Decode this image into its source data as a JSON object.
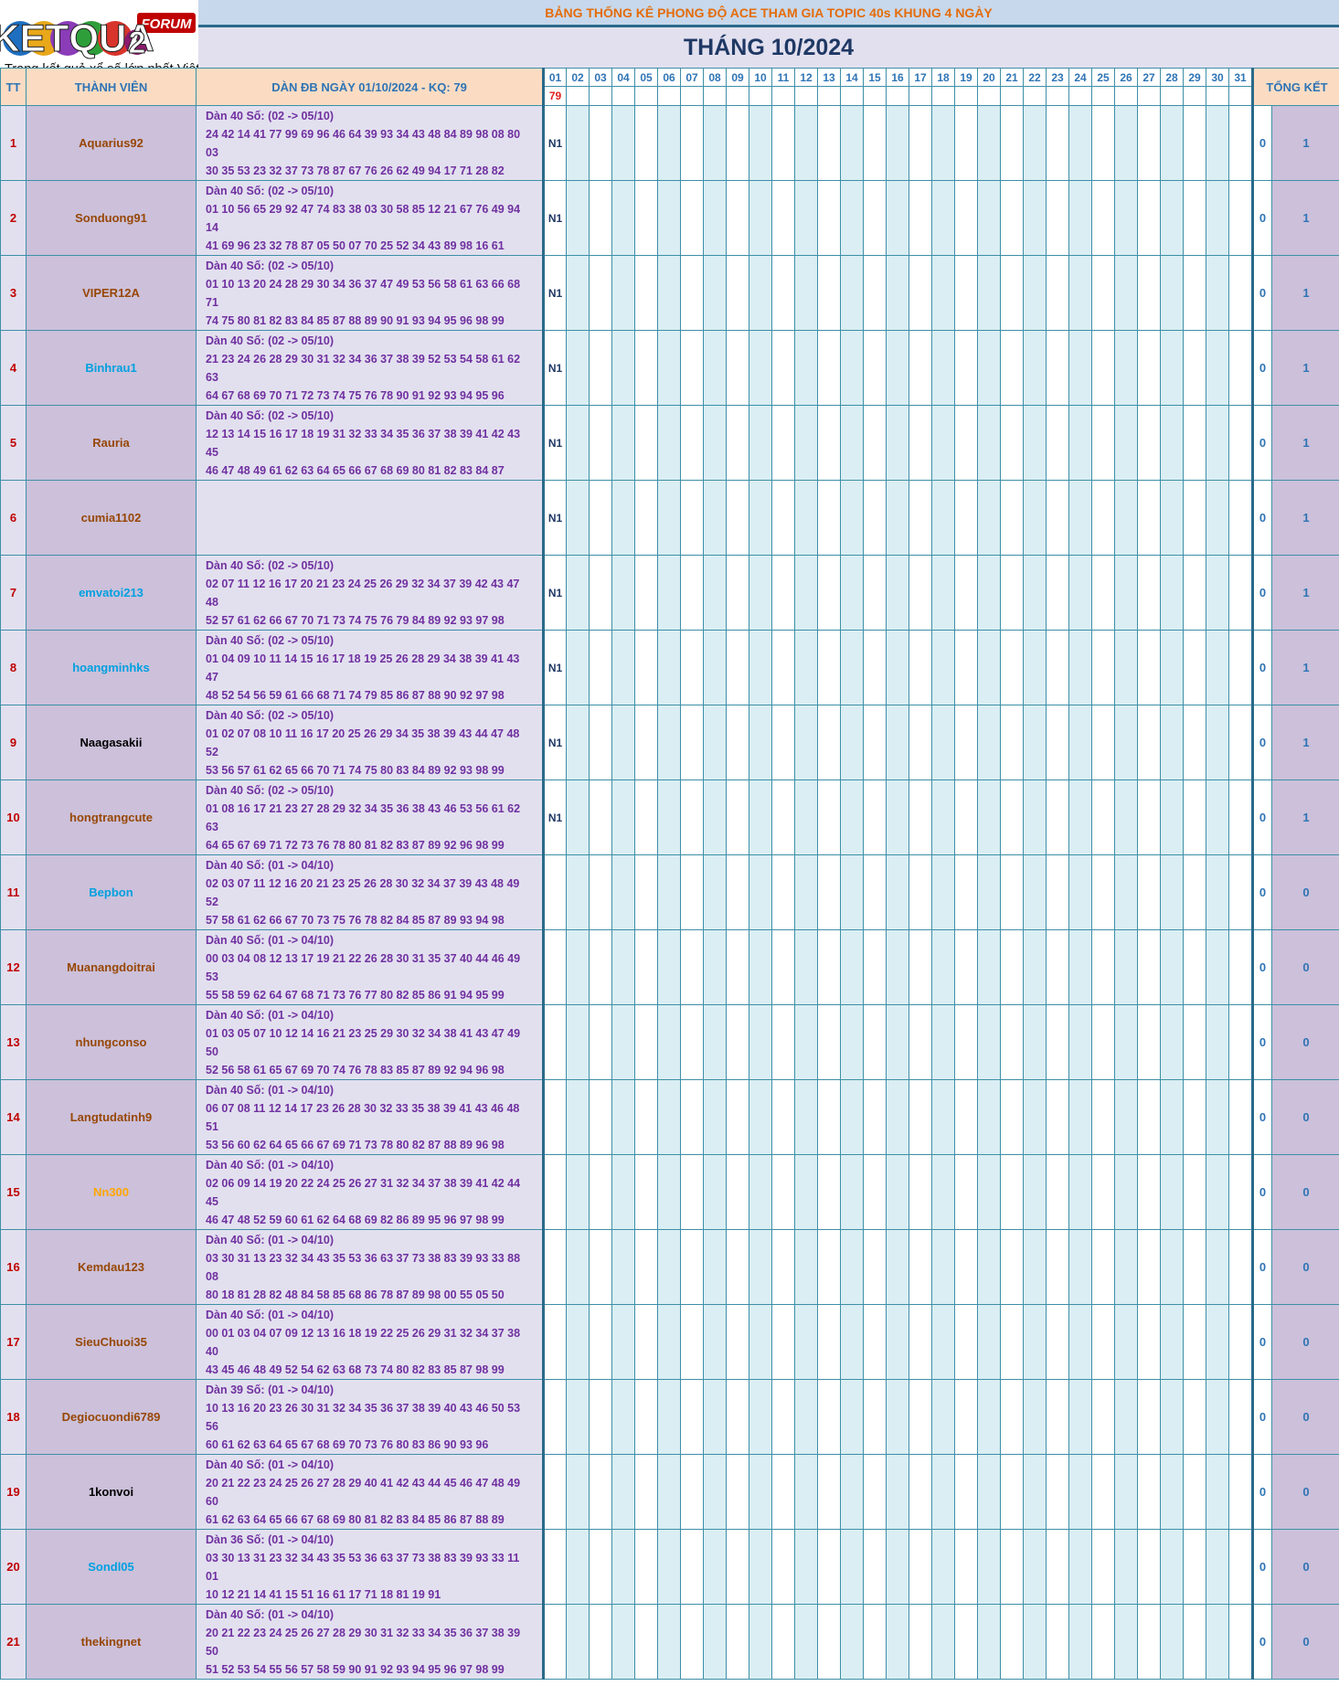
{
  "logo": {
    "brand": "KETQUA",
    "brand_2": "2",
    "forum": "FORUM",
    "tagline": "Trang kết quả xổ số lớn nhất Việt Nam"
  },
  "header": {
    "banner": "BẢNG THỐNG KÊ PHONG ĐỘ ACE THAM GIA TOPIC 40s KHUNG 4 NGÀY",
    "month_title": "THÁNG 10/2024"
  },
  "columns": {
    "tt": "TT",
    "member": "THÀNH VIÊN",
    "dan": "DÀN ĐB NGÀY 01/10/2024 - KQ: 79",
    "days": [
      "01",
      "02",
      "03",
      "04",
      "05",
      "06",
      "07",
      "08",
      "09",
      "10",
      "11",
      "12",
      "13",
      "14",
      "15",
      "16",
      "17",
      "18",
      "19",
      "20",
      "21",
      "22",
      "23",
      "24",
      "25",
      "26",
      "27",
      "28",
      "29",
      "30",
      "31"
    ],
    "results": [
      "79",
      "",
      "",
      "",
      "",
      "",
      "",
      "",
      "",
      "",
      "",
      "",
      "",
      "",
      "",
      "",
      "",
      "",
      "",
      "",
      "",
      "",
      "",
      "",
      "",
      "",
      "",
      "",
      "",
      "",
      ""
    ],
    "summary": "TỔNG KẾT"
  },
  "colors": {
    "brown": "#974706",
    "blue": "#00a0e0",
    "black": "#000000",
    "orange": "#ffa500"
  },
  "rows": [
    {
      "tt": "1",
      "name": "Aquarius92",
      "color": "brown",
      "line1": "Dàn 40 Số: (02 -> 05/10)",
      "line2": "24 42 14 41 77 99 69 96 46 64 39 93 34 43 48 84 89 98 08 80 03",
      "line3": "30 35 53 23 32 37 73 78 87 67 76 26 62 49 94 17 71 28 82",
      "mark": "N1",
      "hits": "0",
      "total": "1"
    },
    {
      "tt": "2",
      "name": "Sonduong91",
      "color": "brown",
      "line1": "Dàn 40 Số: (02 -> 05/10)",
      "line2": "01 10 56 65 29 92 47 74 83 38 03 30 58 85 12 21 67 76 49 94 14",
      "line3": "41 69 96 23 32 78 87 05 50 07 70 25 52 34 43 89 98 16 61",
      "mark": "N1",
      "hits": "0",
      "total": "1"
    },
    {
      "tt": "3",
      "name": "VIPER12A",
      "color": "brown",
      "line1": "Dàn 40 Số: (02 -> 05/10)",
      "line2": "01 10 13 20 24 28 29 30 34 36 37 47 49 53 56 58 61 63 66 68 71",
      "line3": "74 75 80 81 82 83 84 85 87 88 89 90 91 93 94 95 96 98 99",
      "mark": "N1",
      "hits": "0",
      "total": "1"
    },
    {
      "tt": "4",
      "name": "Binhrau1",
      "color": "blue",
      "line1": "Dàn 40 Số: (02 -> 05/10)",
      "line2": "21 23 24 26 28 29 30 31 32 34 36 37 38 39 52 53 54 58 61 62 63",
      "line3": "64 67 68 69 70 71 72 73 74 75 76 78 90 91 92 93 94 95 96",
      "mark": "N1",
      "hits": "0",
      "total": "1"
    },
    {
      "tt": "5",
      "name": "Rauria",
      "color": "brown",
      "line1": "Dàn 40 Số: (02 -> 05/10)",
      "line2": "12 13 14 15 16 17 18 19 31 32 33 34 35 36 37 38 39 41 42 43 45",
      "line3": "46 47 48 49 61 62 63 64 65 66 67 68 69 80 81 82 83 84 87",
      "mark": "N1",
      "hits": "0",
      "total": "1"
    },
    {
      "tt": "6",
      "name": "cumia1102",
      "color": "brown",
      "line1": "",
      "line2": "",
      "line3": "",
      "mark": "N1",
      "hits": "0",
      "total": "1"
    },
    {
      "tt": "7",
      "name": "emvatoi213",
      "color": "blue",
      "line1": "Dàn 40 Số: (02 -> 05/10)",
      "line2": "02 07 11 12 16 17 20 21 23 24 25 26 29 32 34 37 39 42 43 47 48",
      "line3": "52 57 61 62 66 67 70 71 73 74 75 76 79 84 89 92 93 97 98",
      "mark": "N1",
      "hits": "0",
      "total": "1"
    },
    {
      "tt": "8",
      "name": "hoangminhks",
      "color": "blue",
      "line1": "Dàn 40 Số: (02 -> 05/10)",
      "line2": "01 04 09 10 11 14 15 16 17 18 19 25 26 28 29 34 38 39 41 43 47",
      "line3": "48 52 54 56 59 61 66 68 71 74 79 85 86 87 88 90 92 97 98",
      "mark": "N1",
      "hits": "0",
      "total": "1"
    },
    {
      "tt": "9",
      "name": "Naagasakii",
      "color": "black",
      "line1": "Dàn 40 Số: (02 -> 05/10)",
      "line2": "01 02 07 08 10 11 16 17 20 25 26 29 34 35 38 39 43 44 47 48 52",
      "line3": "53 56 57 61 62 65 66 70 71 74 75 80 83 84 89 92 93 98 99",
      "mark": "N1",
      "hits": "0",
      "total": "1"
    },
    {
      "tt": "10",
      "name": "hongtrangcute",
      "color": "brown",
      "line1": "Dàn 40 Số: (02 -> 05/10)",
      "line2": "01 08 16 17 21 23 27 28 29 32 34 35 36 38 43 46 53 56 61 62 63",
      "line3": "64 65 67 69 71 72 73 76 78 80 81 82 83 87 89 92 96 98 99",
      "mark": "N1",
      "hits": "0",
      "total": "1"
    },
    {
      "tt": "11",
      "name": "Bepbon",
      "color": "blue",
      "line1": "Dàn 40 Số: (01 -> 04/10)",
      "line2": "02 03 07 11 12 16 20 21 23 25 26 28 30 32 34 37 39 43 48 49 52",
      "line3": "57 58 61 62 66 67 70 73 75 76 78 82 84 85 87 89 93 94 98",
      "mark": "",
      "hits": "0",
      "total": "0"
    },
    {
      "tt": "12",
      "name": "Muanangdoitrai",
      "color": "brown",
      "line1": "Dàn 40 Số: (01 -> 04/10)",
      "line2": "00 03 04 08 12 13 17 19 21 22 26 28 30 31 35 37 40 44 46 49 53",
      "line3": "55 58 59 62 64 67 68 71 73 76 77 80 82 85 86 91 94 95 99",
      "mark": "",
      "hits": "0",
      "total": "0"
    },
    {
      "tt": "13",
      "name": "nhungconso",
      "color": "brown",
      "line1": "Dàn 40 Số: (01 -> 04/10)",
      "line2": "01 03 05 07 10 12 14 16 21 23 25 29 30 32 34 38 41 43 47 49 50",
      "line3": "52 56 58 61 65 67 69 70 74 76 78 83 85 87 89 92 94 96 98",
      "mark": "",
      "hits": "0",
      "total": "0"
    },
    {
      "tt": "14",
      "name": "Langtudatinh9",
      "color": "brown",
      "line1": "Dàn 40 Số: (01 -> 04/10)",
      "line2": "06 07 08 11 12 14 17 23 26 28 30 32 33 35 38 39 41 43 46 48 51",
      "line3": "53 56 60 62 64 65 66 67 69 71 73 78 80 82 87 88 89 96 98",
      "mark": "",
      "hits": "0",
      "total": "0"
    },
    {
      "tt": "15",
      "name": "Nn300",
      "color": "orange",
      "line1": "Dàn 40 Số: (01 -> 04/10)",
      "line2": "02 06 09 14 19 20 22 24 25 26 27 31 32 34 37 38 39 41 42 44 45",
      "line3": "46 47 48 52 59 60 61 62 64 68 69 82 86 89 95 96 97 98 99",
      "mark": "",
      "hits": "0",
      "total": "0"
    },
    {
      "tt": "16",
      "name": "Kemdau123",
      "color": "brown",
      "line1": "Dàn 40 Số: (01 -> 04/10)",
      "line2": "03 30 31 13 23 32 34 43 35 53 36 63 37 73 38 83 39 93 33 88 08",
      "line3": "80 18 81 28 82 48 84 58 85 68 86 78 87 89 98 00 55 05 50",
      "mark": "",
      "hits": "0",
      "total": "0"
    },
    {
      "tt": "17",
      "name": "SieuChuoi35",
      "color": "brown",
      "line1": "Dàn 40 Số: (01 -> 04/10)",
      "line2": "00 01 03 04 07 09 12 13 16 18 19 22 25 26 29 31 32 34 37 38 40",
      "line3": "43 45 46 48 49 52 54 62 63 68 73 74 80 82 83 85 87 98 99",
      "mark": "",
      "hits": "0",
      "total": "0"
    },
    {
      "tt": "18",
      "name": "Degiocuondi6789",
      "color": "brown",
      "line1": "Dàn 39 Số: (01 -> 04/10)",
      "line2": "10 13 16 20 23 26 30 31 32 34 35 36 37 38 39 40 43 46 50 53 56",
      "line3": "60 61 62 63 64 65 67 68 69 70 73 76 80 83 86 90 93 96",
      "mark": "",
      "hits": "0",
      "total": "0"
    },
    {
      "tt": "19",
      "name": "1konvoi",
      "color": "black",
      "line1": "Dàn 40 Số: (01 -> 04/10)",
      "line2": "20 21 22 23 24 25 26 27 28 29 40 41 42 43 44 45 46 47 48 49 60",
      "line3": "61 62 63 64 65 66 67 68 69 80 81 82 83 84 85 86 87 88 89",
      "mark": "",
      "hits": "0",
      "total": "0"
    },
    {
      "tt": "20",
      "name": "Sondl05",
      "color": "blue",
      "line1": "Dàn 36 Số: (01 -> 04/10)",
      "line2": "03 30 13 31 23 32 34 43 35 53 36 63 37 73 38 83 39 93 33 11 01",
      "line3": "10 12 21 14 41 15 51 16 61 17 71 18 81 19 91",
      "mark": "",
      "hits": "0",
      "total": "0"
    },
    {
      "tt": "21",
      "name": "thekingnet",
      "color": "brown",
      "line1": "Dàn 40 Số: (01 -> 04/10)",
      "line2": "20 21 22 23 24 25 26 27 28 29 30 31 32 33 34 35 36 37 38 39 50",
      "line3": "51 52 53 54 55 56 57 58 59 90 91 92 93 94 95 96 97 98 99",
      "mark": "",
      "hits": "0",
      "total": "0"
    }
  ]
}
